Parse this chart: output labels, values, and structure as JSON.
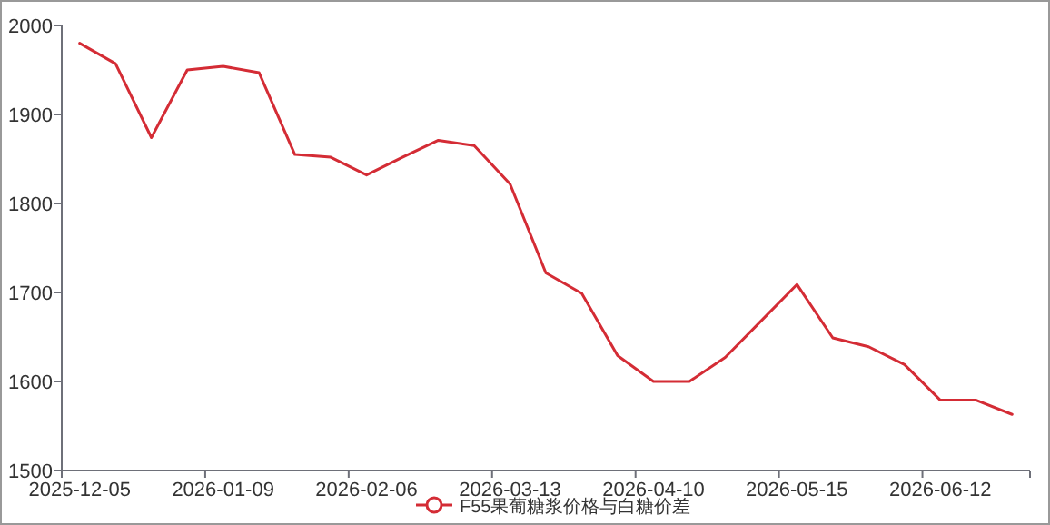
{
  "chart_data": {
    "type": "line",
    "categories": [
      "2025-12-05",
      null,
      null,
      null,
      "2026-01-09",
      null,
      null,
      null,
      "2026-02-06",
      null,
      null,
      null,
      "2026-03-13",
      null,
      null,
      null,
      "2026-04-10",
      null,
      null,
      null,
      "2026-05-15",
      null,
      null,
      null,
      "2026-06-12",
      null,
      null
    ],
    "series": [
      {
        "name": "F55果葡糖浆价格与白糖价差",
        "color": "#d42c35",
        "values": [
          1980,
          1957,
          1874,
          1950,
          1954,
          1947,
          1855,
          1852,
          1832,
          1852,
          1871,
          1865,
          1822,
          1722,
          1699,
          1629,
          1600,
          1600,
          1627,
          1668,
          1709,
          1649,
          1639,
          1619,
          1579,
          1579,
          1563
        ]
      }
    ],
    "ylim": [
      1500,
      2000
    ],
    "yticks": [
      1500,
      1600,
      1700,
      1800,
      1900,
      2000
    ],
    "grid": false,
    "legend": "bottom",
    "marker": "none",
    "line_style": "solid"
  }
}
